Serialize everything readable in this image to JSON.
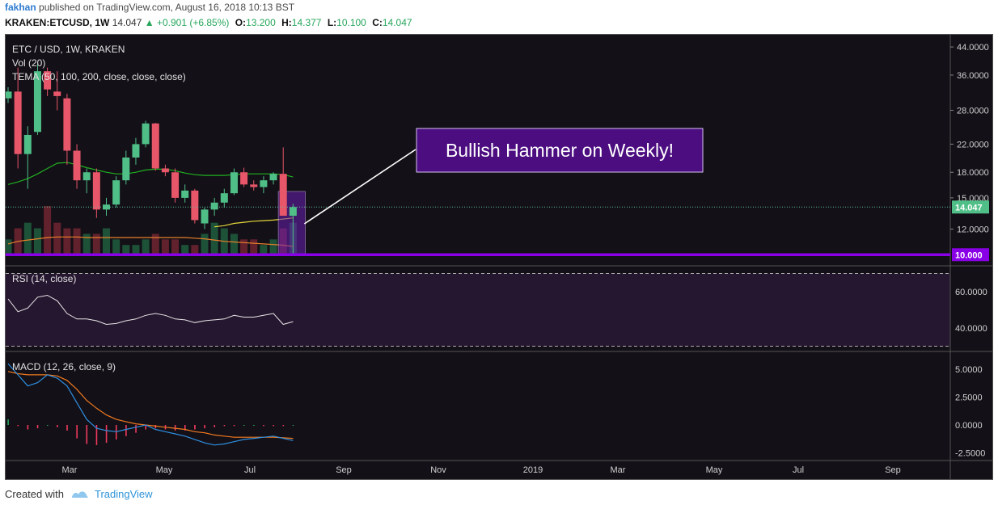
{
  "header": {
    "author": "fakhan",
    "published_text": "published on TradingView.com, August 16, 2018 10:13 BST",
    "symbol": "KRAKEN:ETCUSD, 1W",
    "last": "14.047",
    "change": "+0.901 (+6.85%)",
    "open_label": "O:",
    "open": "13.200",
    "high_label": "H:",
    "high": "14.377",
    "low_label": "L:",
    "low": "10.100",
    "close_label": "C:",
    "close": "14.047"
  },
  "legend": {
    "title": "ETC / USD, 1W, KRAKEN",
    "vol": "Vol (20)",
    "tema": "TEMA (50, 100, 200, close, close, close)",
    "rsi": "RSI (14, close)",
    "macd": "MACD (12, 26, close, 9)"
  },
  "annotation": {
    "text": "Bullish Hammer on Weekly!"
  },
  "footer": {
    "created_with": "Created with",
    "brand": "TradingView"
  },
  "colors": {
    "background": "#131017",
    "bull": "#4fbf87",
    "bear": "#e8566a",
    "support_line": "#8a00e6",
    "annotation_box": "#4b0d80",
    "tema_green": "#21b021",
    "tema_yellow": "#e3d63a",
    "tema_orange": "#e8802a",
    "rsi_fill": "#2e1a3a",
    "macd_line": "#2f8fe0",
    "signal_line": "#f27a1f"
  },
  "chart_data": {
    "type": "candlestick",
    "price_axis": {
      "scale": "log",
      "ticks": [
        "44.0000",
        "36.0000",
        "28.0000",
        "22.0000",
        "18.0000",
        "15.0000",
        "12.0000"
      ],
      "tick_values": [
        44,
        36,
        28,
        22,
        18,
        15,
        12
      ],
      "last_price_label": "14.047",
      "support_label": "10.000",
      "support_value": 10.0
    },
    "time_axis": [
      "Mar",
      "May",
      "Jul",
      "Sep",
      "Nov",
      "2019",
      "Mar",
      "May",
      "Jul",
      "Sep"
    ],
    "candles": [
      {
        "o": 30.5,
        "h": 33.0,
        "l": 29.5,
        "c": 32.0
      },
      {
        "o": 32.0,
        "h": 38.0,
        "l": 18.5,
        "c": 20.5
      },
      {
        "o": 20.5,
        "h": 25.0,
        "l": 16.0,
        "c": 23.5
      },
      {
        "o": 24.0,
        "h": 39.0,
        "l": 23.5,
        "c": 37.0
      },
      {
        "o": 37.0,
        "h": 38.0,
        "l": 31.0,
        "c": 32.5
      },
      {
        "o": 32.0,
        "h": 37.0,
        "l": 28.0,
        "c": 31.0
      },
      {
        "o": 30.5,
        "h": 31.5,
        "l": 19.0,
        "c": 21.0
      },
      {
        "o": 21.0,
        "h": 22.0,
        "l": 16.0,
        "c": 17.0
      },
      {
        "o": 17.0,
        "h": 18.5,
        "l": 15.5,
        "c": 18.0
      },
      {
        "o": 18.0,
        "h": 18.5,
        "l": 13.0,
        "c": 13.8
      },
      {
        "o": 13.8,
        "h": 15.0,
        "l": 13.2,
        "c": 14.3
      },
      {
        "o": 14.3,
        "h": 17.5,
        "l": 14.0,
        "c": 17.0
      },
      {
        "o": 17.0,
        "h": 21.0,
        "l": 16.5,
        "c": 20.0
      },
      {
        "o": 20.0,
        "h": 23.0,
        "l": 19.0,
        "c": 22.0
      },
      {
        "o": 22.0,
        "h": 26.0,
        "l": 21.5,
        "c": 25.5
      },
      {
        "o": 25.5,
        "h": 25.6,
        "l": 18.2,
        "c": 18.5
      },
      {
        "o": 18.5,
        "h": 19.0,
        "l": 17.5,
        "c": 18.0
      },
      {
        "o": 18.0,
        "h": 18.5,
        "l": 14.5,
        "c": 15.0
      },
      {
        "o": 15.0,
        "h": 16.5,
        "l": 14.5,
        "c": 15.8
      },
      {
        "o": 15.8,
        "h": 16.0,
        "l": 12.5,
        "c": 12.8
      },
      {
        "o": 12.5,
        "h": 14.0,
        "l": 12.0,
        "c": 13.8
      },
      {
        "o": 13.8,
        "h": 15.0,
        "l": 13.2,
        "c": 14.5
      },
      {
        "o": 14.5,
        "h": 16.0,
        "l": 14.0,
        "c": 15.5
      },
      {
        "o": 15.5,
        "h": 18.5,
        "l": 15.3,
        "c": 18.0
      },
      {
        "o": 18.0,
        "h": 18.6,
        "l": 16.2,
        "c": 16.5
      },
      {
        "o": 16.5,
        "h": 17.0,
        "l": 15.8,
        "c": 16.2
      },
      {
        "o": 16.2,
        "h": 17.5,
        "l": 15.5,
        "c": 17.0
      },
      {
        "o": 17.0,
        "h": 18.0,
        "l": 16.5,
        "c": 17.8
      },
      {
        "o": 17.8,
        "h": 21.5,
        "l": 13.2,
        "c": 13.2
      },
      {
        "o": 13.2,
        "h": 14.377,
        "l": 10.1,
        "c": 14.047
      }
    ],
    "volume": [
      3,
      5,
      6,
      5,
      9,
      6,
      5,
      5,
      4,
      4,
      5,
      3,
      2,
      2,
      3,
      4,
      3,
      3,
      2,
      2,
      4,
      6,
      5,
      4,
      3,
      3,
      2,
      3,
      5,
      6
    ],
    "tema_green": [
      16.5,
      16.8,
      17.2,
      17.8,
      18.5,
      19.2,
      19.3,
      19.0,
      18.6,
      18.3,
      18.0,
      17.8,
      17.8,
      18.0,
      18.3,
      18.4,
      18.4,
      18.2,
      17.9,
      17.7,
      17.6,
      17.6,
      17.6,
      17.7,
      17.8,
      17.8,
      17.8,
      17.8,
      17.7,
      17.4
    ],
    "tema_yellow": [
      null,
      null,
      null,
      null,
      null,
      null,
      null,
      null,
      null,
      null,
      null,
      null,
      null,
      null,
      null,
      null,
      null,
      null,
      null,
      null,
      null,
      12.2,
      12.3,
      12.5,
      12.6,
      12.7,
      12.75,
      12.8,
      12.9,
      13.0
    ],
    "tema_orange": [
      10.8,
      11.0,
      11.1,
      11.2,
      11.3,
      11.35,
      11.35,
      11.35,
      11.3,
      11.3,
      11.3,
      11.3,
      11.3,
      11.3,
      11.3,
      11.3,
      11.3,
      11.3,
      11.3,
      11.25,
      11.2,
      11.1,
      11.0,
      10.95,
      10.9,
      10.85,
      10.8,
      10.75,
      10.7,
      10.6
    ],
    "rsi": {
      "ticks": [
        "60.0000",
        "40.0000"
      ],
      "tick_values": [
        60,
        40
      ],
      "values": [
        56,
        49,
        51,
        57,
        58,
        55,
        48,
        45,
        45,
        44,
        42,
        42.5,
        44,
        45,
        47,
        48,
        47,
        45,
        44.5,
        43,
        44,
        44.5,
        45,
        47,
        46,
        46,
        47,
        48,
        42,
        43.5
      ]
    },
    "macd": {
      "ticks": [
        "5.0000",
        "2.5000",
        "0.0000",
        "-2.5000"
      ],
      "tick_values": [
        5,
        2.5,
        0,
        -2.5
      ],
      "macd_line": [
        5.5,
        4.5,
        3.5,
        3.8,
        4.5,
        4.2,
        3.5,
        2.0,
        0.5,
        -0.3,
        -0.5,
        -0.6,
        -0.4,
        -0.2,
        0.0,
        -0.4,
        -0.6,
        -0.8,
        -1.0,
        -1.3,
        -1.6,
        -1.8,
        -1.7,
        -1.5,
        -1.3,
        -1.2,
        -1.1,
        -1.0,
        -1.2,
        -1.4
      ],
      "signal_line": [
        4.8,
        4.6,
        4.5,
        4.5,
        4.5,
        4.4,
        4.0,
        3.2,
        2.2,
        1.5,
        0.9,
        0.5,
        0.3,
        0.1,
        0.0,
        -0.1,
        -0.2,
        -0.3,
        -0.4,
        -0.6,
        -0.7,
        -0.9,
        -1.0,
        -1.1,
        -1.1,
        -1.1,
        -1.1,
        -1.1,
        -1.15,
        -1.2
      ],
      "histogram": [
        0.5,
        -0.1,
        -0.4,
        -0.3,
        0.0,
        -0.2,
        -0.5,
        -1.2,
        -1.7,
        -1.8,
        -1.6,
        -1.3,
        -1.0,
        -0.7,
        -0.4,
        -0.3,
        -0.4,
        -0.5,
        -0.5,
        -0.4,
        -0.3,
        -0.2,
        -0.1,
        -0.1,
        0.0,
        0.0,
        -0.1,
        -0.1,
        -0.1,
        0.0
      ]
    }
  }
}
